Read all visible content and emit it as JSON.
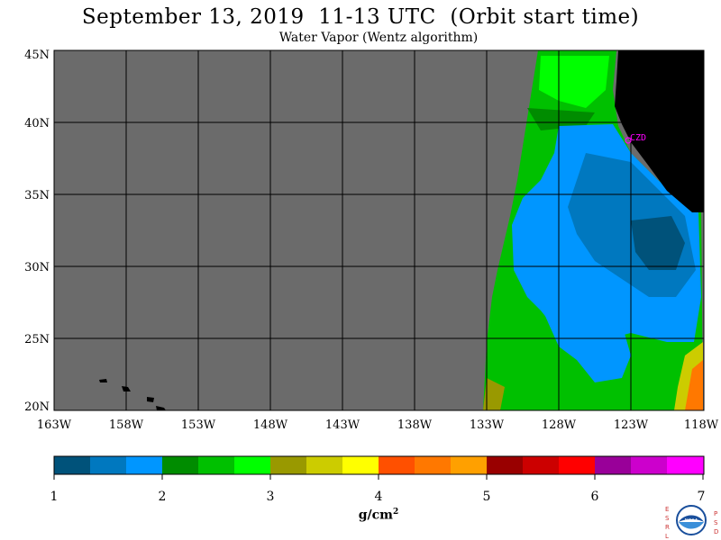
{
  "header": {
    "title": "September 13, 2019  11-13 UTC  (Orbit start time)",
    "subtitle": "Water Vapor (Wentz algorithm)"
  },
  "map": {
    "lat_labels": [
      "45N",
      "40N",
      "35N",
      "30N",
      "25N",
      "20N"
    ],
    "lon_labels": [
      "163W",
      "158W",
      "153W",
      "148W",
      "143W",
      "138W",
      "133W",
      "128W",
      "123W",
      "118W"
    ],
    "station_label": "CZD",
    "colors": {
      "no_data": "#6b6b6b",
      "land": "#000000",
      "station": "#ff00ff",
      "grid": "#000000"
    }
  },
  "colorbar": {
    "tick_labels": [
      "1",
      "2",
      "3",
      "4",
      "5",
      "6",
      "7"
    ],
    "colors": [
      "#00527a",
      "#0078bf",
      "#0096ff",
      "#008c00",
      "#00c000",
      "#00ff00",
      "#999900",
      "#cccc00",
      "#ffff00",
      "#ff5000",
      "#ff7800",
      "#ffa000",
      "#990000",
      "#cc0000",
      "#ff0000",
      "#990099",
      "#cc00cc",
      "#ff00ff"
    ],
    "unit_text": "g/cm",
    "unit_sup": "2"
  },
  "logo": {
    "left_letters": "ESRL",
    "right_letters": "PSD",
    "center_text": "NOAA"
  }
}
